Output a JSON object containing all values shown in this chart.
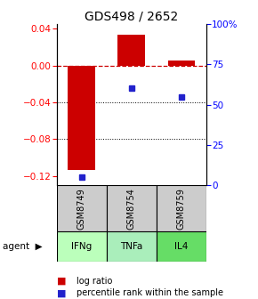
{
  "title": "GDS498 / 2652",
  "samples": [
    "GSM8749",
    "GSM8754",
    "GSM8759"
  ],
  "agents": [
    "IFNg",
    "TNFa",
    "IL4"
  ],
  "log_ratios": [
    -0.113,
    0.033,
    0.005
  ],
  "percentile_ranks": [
    5.0,
    60.0,
    55.0
  ],
  "ylim_left": [
    -0.13,
    0.045
  ],
  "ylim_right": [
    0,
    100
  ],
  "yticks_left": [
    0.04,
    0.0,
    -0.04,
    -0.08,
    -0.12
  ],
  "yticks_right": [
    100,
    75,
    50,
    25,
    0
  ],
  "bar_color": "#cc0000",
  "dot_color": "#2222cc",
  "agent_colors": [
    "#bbffbb",
    "#aaeebb",
    "#66dd66"
  ],
  "sample_bg": "#cccccc",
  "zero_line_color": "#cc0000",
  "title_fontsize": 10,
  "tick_fontsize": 7.5,
  "legend_fontsize": 7,
  "bar_width": 0.55
}
